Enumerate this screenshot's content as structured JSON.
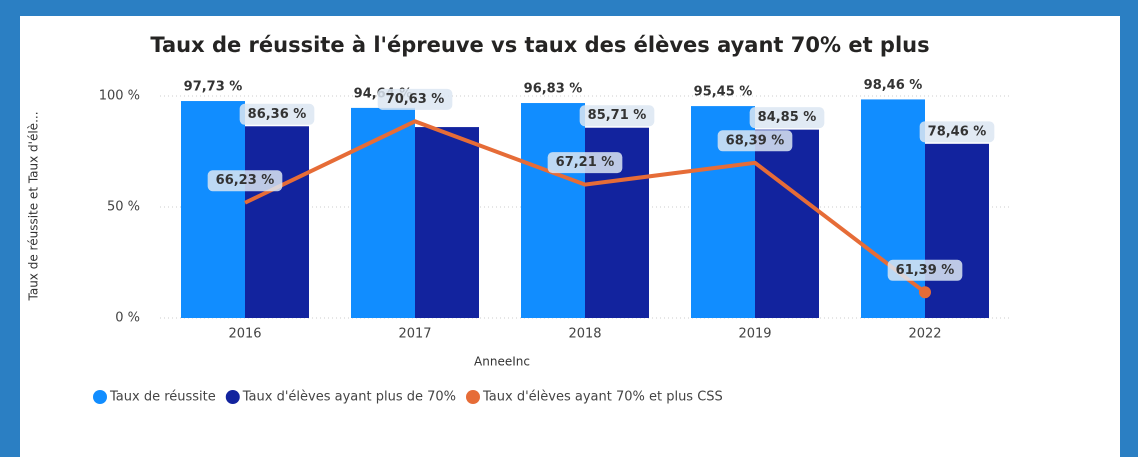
{
  "chart_data": {
    "type": "bar-line",
    "title": "Taux de réussite à l'épreuve vs taux des élèves ayant 70% et plus",
    "y_axis_label": "Taux de réussite et Taux d'élè...",
    "x_axis_label": "AnneeInc",
    "categories": [
      "2016",
      "2017",
      "2018",
      "2019",
      "2022"
    ],
    "ylim": [
      0,
      100
    ],
    "yticks": [
      {
        "value": 0,
        "label": "0 %"
      },
      {
        "value": 50,
        "label": "50 %"
      },
      {
        "value": 100,
        "label": "100 %"
      }
    ],
    "y2lim": [
      60,
      72
    ],
    "grid": true,
    "legend": "bottom",
    "series": [
      {
        "name": "Taux de réussite",
        "type": "bar",
        "color": "#118dff",
        "values": [
          97.73,
          94.64,
          96.83,
          95.45,
          98.46
        ],
        "value_labels": [
          "97,73 %",
          "94,64 %",
          "96,83 %",
          "95,45 %",
          "98,46 %"
        ]
      },
      {
        "name": "Taux d'élèves ayant plus de 70%",
        "type": "bar",
        "color": "#12239e",
        "values": [
          86.36,
          86,
          85.71,
          84.85,
          78.46
        ],
        "value_labels": [
          "86,36 %",
          null,
          "85,71 %",
          "84,85 %",
          "78,46 %"
        ]
      },
      {
        "name": "Taux d'élèves ayant 70% et plus CSS",
        "type": "line",
        "axis": "y2",
        "color": "#e66c37",
        "values": [
          66.23,
          70.63,
          67.21,
          68.39,
          61.39
        ],
        "value_labels": [
          "66,23 %",
          "70,63 %",
          "67,21 %",
          "68,39 %",
          "61,39 %"
        ]
      }
    ]
  }
}
